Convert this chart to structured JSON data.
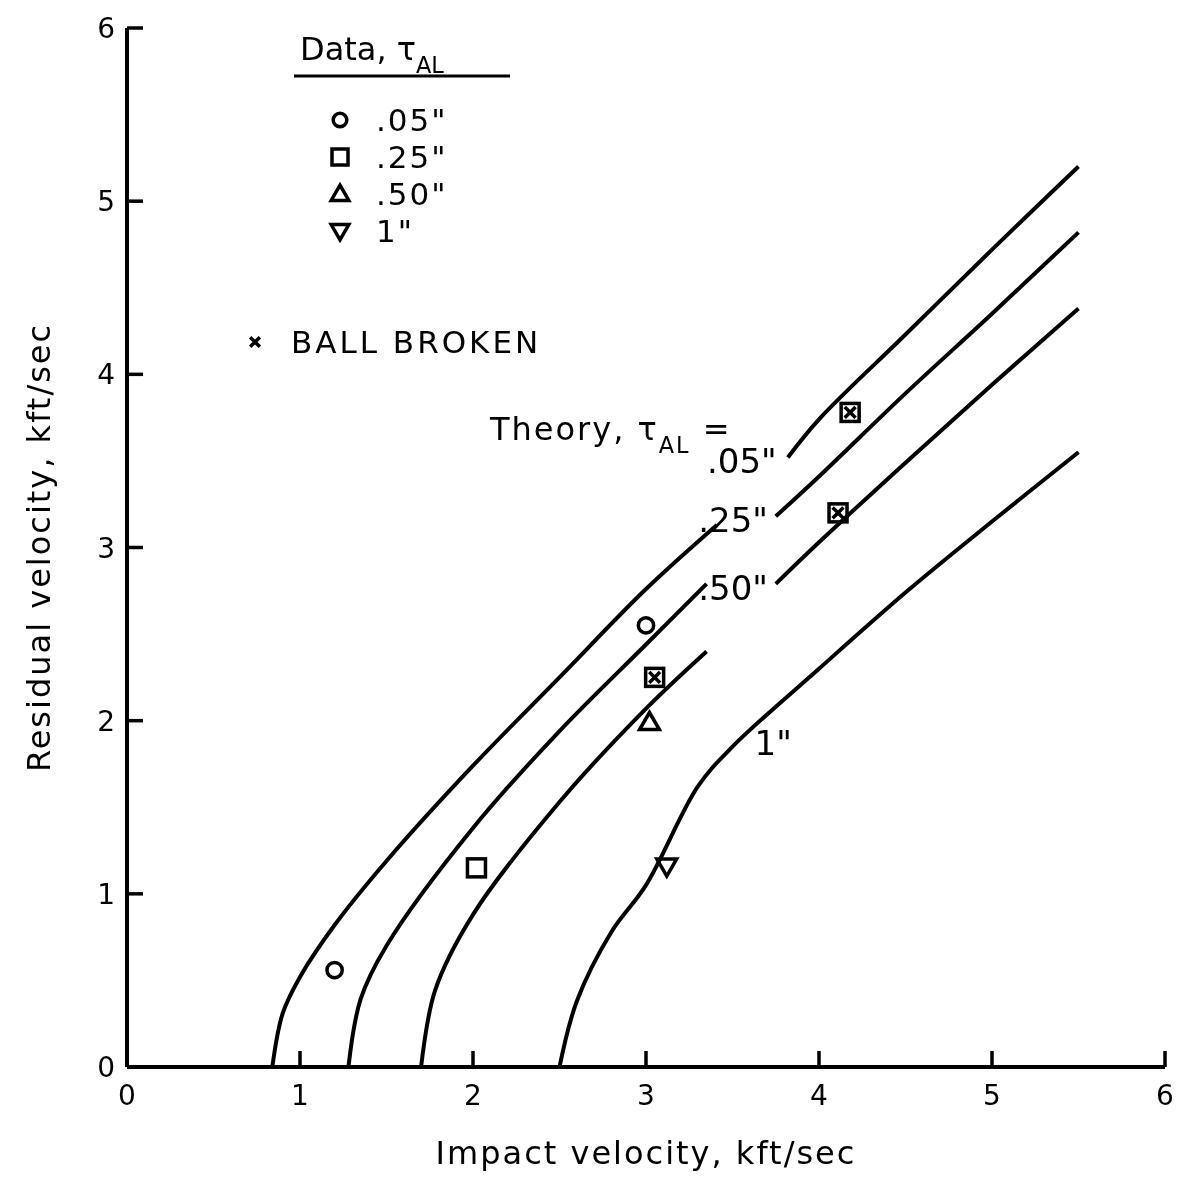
{
  "chart_data": {
    "type": "scatter",
    "xlabel": "Impact velocity, kft/sec",
    "ylabel": "Residual velocity, kft/sec",
    "legend_title": "Data, τ$_{AL}$",
    "legend": "top left",
    "grid": false,
    "xlim": [
      0,
      6
    ],
    "ylim": [
      0,
      6
    ],
    "xticks": [
      0,
      1,
      2,
      3,
      4,
      5,
      6
    ],
    "yticks": [
      0,
      1,
      2,
      3,
      4,
      5,
      6
    ],
    "series": [
      {
        "name": ".05\"",
        "marker": "circle",
        "color": "#000000",
        "x": [
          1.2,
          3.0
        ],
        "values": [
          0.56,
          2.55
        ]
      },
      {
        "name": ".25\"",
        "marker": "square",
        "color": "#000000",
        "x": [
          2.02,
          3.05,
          4.11,
          4.18
        ],
        "values": [
          1.15,
          2.25,
          3.2,
          3.78
        ]
      },
      {
        "name": ".50\"",
        "marker": "triangle",
        "color": "#000000",
        "x": [
          3.02
        ],
        "values": [
          1.99
        ]
      },
      {
        "name": "1\"",
        "marker": "triangle-down",
        "color": "#000000",
        "x": [
          3.12
        ],
        "values": [
          1.16
        ]
      },
      {
        "name": "BALL BROKEN",
        "marker": "cross",
        "color": "#000000",
        "x": [
          3.05,
          4.11,
          4.18
        ],
        "values": [
          2.25,
          3.2,
          3.78
        ]
      },
      {
        "name": ".05\"",
        "type": "line",
        "line_style": "solid",
        "color": "#000000",
        "x": [
          0.84,
          0.9,
          1.0,
          1.2,
          1.5,
          2,
          2.5,
          3,
          3.41,
          3.6,
          3.82,
          4,
          4.5,
          5,
          5.5
        ],
        "values": [
          0,
          0.31,
          0.52,
          0.82,
          1.19,
          1.74,
          2.25,
          2.76,
          3.13,
          null,
          3.52,
          3.74,
          4.23,
          4.72,
          5.2
        ]
      },
      {
        "name": ".25\"",
        "type": "line",
        "line_style": "solid",
        "color": "#000000",
        "x": [
          1.28,
          1.35,
          1.5,
          2,
          2.5,
          3,
          3.35,
          3.55,
          3.75,
          4,
          4.5,
          5,
          5.5
        ],
        "values": [
          0,
          0.39,
          0.7,
          1.38,
          1.94,
          2.44,
          2.79,
          null,
          3.18,
          3.41,
          3.89,
          4.35,
          4.82
        ]
      },
      {
        "name": ".50\"",
        "type": "line",
        "line_style": "solid",
        "color": "#000000",
        "x": [
          1.7,
          1.78,
          2,
          2.5,
          3,
          3.35,
          3.55,
          3.75,
          4,
          4.5,
          5,
          5.5
        ],
        "values": [
          0,
          0.44,
          0.88,
          1.53,
          2.07,
          2.4,
          null,
          2.79,
          3.03,
          3.49,
          3.94,
          4.38
        ]
      },
      {
        "name": "1\"",
        "type": "line",
        "line_style": "solid",
        "color": "#000000",
        "x": [
          2.5,
          2.6,
          2.8,
          3,
          3.3,
          3.5,
          4,
          4.5,
          5,
          5.5
        ],
        "values": [
          0,
          0.38,
          0.78,
          1.05,
          1.62,
          1.85,
          2.3,
          2.74,
          3.15,
          3.55
        ]
      }
    ],
    "annotations": [
      "Theory, τ$_{AL}$ ="
    ]
  }
}
